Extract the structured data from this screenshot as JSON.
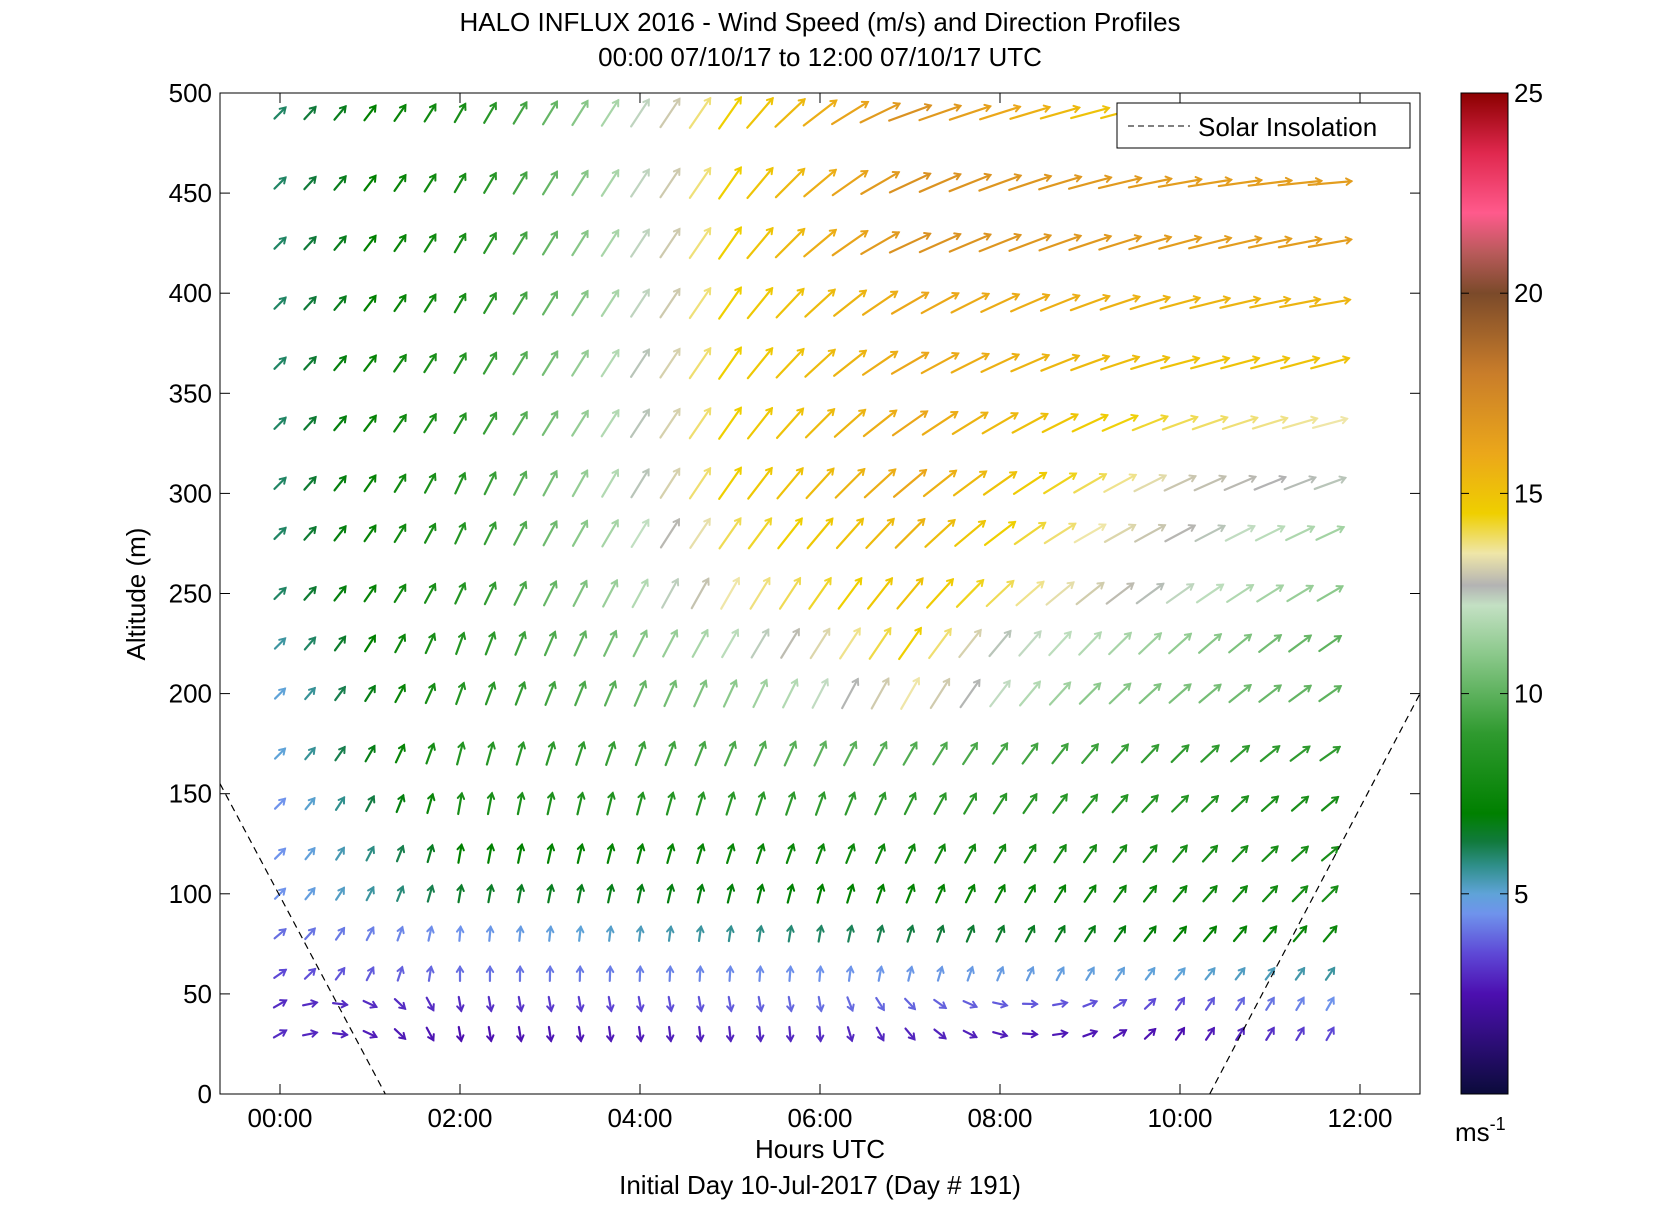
{
  "chart_data": {
    "type": "quiver",
    "title": "HALO INFLUX 2016 - Wind Speed (m/s) and Direction Profiles",
    "subtitle": "00:00 07/10/17 to 12:00 07/10/17  UTC",
    "xlabel": "Hours UTC",
    "xlabel_note": "Initial Day 10-Jul-2017 (Day # 191)",
    "ylabel": "Altitude (m)",
    "xlim": [
      -0.6667,
      12.6667
    ],
    "ylim": [
      0,
      500
    ],
    "x_ticks": [
      0,
      2,
      4,
      6,
      8,
      10,
      12
    ],
    "x_tick_labels": [
      "00:00",
      "02:00",
      "04:00",
      "06:00",
      "08:00",
      "10:00",
      "12:00"
    ],
    "y_ticks": [
      0,
      50,
      100,
      150,
      200,
      250,
      300,
      350,
      400,
      450,
      500
    ],
    "y_tick_labels": [
      "0",
      "50",
      "100",
      "150",
      "200",
      "250",
      "300",
      "350",
      "400",
      "450",
      "500"
    ],
    "times_hours": [
      0,
      0.333,
      0.667,
      1,
      1.333,
      1.667,
      2,
      2.333,
      2.667,
      3,
      3.333,
      3.667,
      4,
      4.333,
      4.667,
      5,
      5.333,
      5.667,
      6,
      6.333,
      6.667,
      7,
      7.333,
      7.667,
      8,
      8.333,
      8.667,
      9,
      9.333,
      9.667,
      10,
      10.333,
      10.667,
      11,
      11.333,
      11.667
    ],
    "altitudes_m": [
      30,
      45,
      60,
      80,
      100,
      120,
      145,
      170,
      200,
      225,
      250,
      280,
      305,
      335,
      365,
      395,
      425,
      455,
      490
    ],
    "legend": {
      "label": "Solar Insolation",
      "position": "top-right"
    },
    "solar_insolation": {
      "style": "dashed",
      "segments": [
        {
          "x": [
            -0.6667,
            1.17
          ],
          "y": [
            155,
            0
          ]
        },
        {
          "x": [
            10.33,
            12.6667
          ],
          "y": [
            0,
            200
          ]
        }
      ]
    },
    "colorbar": {
      "min": 0,
      "max": 25,
      "ticks": [
        5,
        10,
        15,
        20,
        25
      ],
      "tick_labels": [
        "5",
        "10",
        "15",
        "20",
        "25"
      ],
      "unit_label": "ms",
      "unit_exponent": "-1",
      "stops": [
        {
          "v": 0,
          "c": "#0b0b3b"
        },
        {
          "v": 2.5,
          "c": "#4c0fb0"
        },
        {
          "v": 3.5,
          "c": "#5e48d6"
        },
        {
          "v": 4.5,
          "c": "#6f93ec"
        },
        {
          "v": 5,
          "c": "#5fa3d8"
        },
        {
          "v": 5.7,
          "c": "#2f8f8a"
        },
        {
          "v": 6.3,
          "c": "#117a3d"
        },
        {
          "v": 7,
          "c": "#008000"
        },
        {
          "v": 9,
          "c": "#2f9a2f"
        },
        {
          "v": 11,
          "c": "#8cc98c"
        },
        {
          "v": 12.2,
          "c": "#c3e0c3"
        },
        {
          "v": 12.7,
          "c": "#b3b3b3"
        },
        {
          "v": 13.5,
          "c": "#efe6a8"
        },
        {
          "v": 14.5,
          "c": "#efcf00"
        },
        {
          "v": 16,
          "c": "#eba71a"
        },
        {
          "v": 18,
          "c": "#c97d2a"
        },
        {
          "v": 20,
          "c": "#7b4a2a"
        },
        {
          "v": 21,
          "c": "#b85a5a"
        },
        {
          "v": 22,
          "c": "#ff5a8c"
        },
        {
          "v": 23.5,
          "c": "#e0284e"
        },
        {
          "v": 25,
          "c": "#8b0000"
        }
      ]
    },
    "wind_field": {
      "description_units": "speed m/s, direction degrees toward (0 = north/up, 90 = east/right)",
      "speed_keyframes_by_altitude": [
        {
          "alt": 30,
          "t": [
            0,
            2,
            6,
            10,
            11.667
          ],
          "speed": [
            3,
            2.5,
            3,
            2.5,
            3.5
          ],
          "dir": [
            60,
            170,
            175,
            35,
            30
          ]
        },
        {
          "alt": 45,
          "t": [
            0,
            2,
            6,
            10,
            11.667
          ],
          "speed": [
            3,
            3,
            4,
            3.5,
            4.5
          ],
          "dir": [
            60,
            170,
            170,
            35,
            30
          ]
        },
        {
          "alt": 60,
          "t": [
            0,
            2,
            6,
            10,
            11.667
          ],
          "speed": [
            3.5,
            4,
            4.5,
            5,
            5.5
          ],
          "dir": [
            55,
            0,
            5,
            40,
            35
          ]
        },
        {
          "alt": 80,
          "t": [
            0,
            2,
            6,
            10,
            11.667
          ],
          "speed": [
            4,
            4.5,
            6,
            7,
            7.5
          ],
          "dir": [
            50,
            5,
            10,
            40,
            40
          ]
        },
        {
          "alt": 100,
          "t": [
            0,
            2,
            6,
            10,
            11.667
          ],
          "speed": [
            4.5,
            6.5,
            7,
            7.5,
            8
          ],
          "dir": [
            45,
            10,
            15,
            40,
            45
          ]
        },
        {
          "alt": 120,
          "t": [
            0,
            2,
            6,
            10,
            11.667
          ],
          "speed": [
            4.5,
            7,
            7.5,
            8,
            8
          ],
          "dir": [
            45,
            10,
            20,
            40,
            50
          ]
        },
        {
          "alt": 145,
          "t": [
            0,
            2,
            6,
            10,
            11.667
          ],
          "speed": [
            4.5,
            8,
            9,
            8.5,
            8
          ],
          "dir": [
            45,
            10,
            20,
            45,
            50
          ]
        },
        {
          "alt": 170,
          "t": [
            0,
            2,
            6,
            10,
            11.667
          ],
          "speed": [
            5,
            8.5,
            10,
            9,
            9
          ],
          "dir": [
            45,
            15,
            25,
            45,
            55
          ]
        },
        {
          "alt": 200,
          "t": [
            0,
            2,
            5,
            7,
            9,
            11.667
          ],
          "speed": [
            5,
            8.5,
            11,
            13.5,
            11,
            10
          ],
          "dir": [
            45,
            20,
            25,
            30,
            45,
            55
          ]
        },
        {
          "alt": 225,
          "t": [
            0,
            2,
            5,
            7,
            8,
            11.667
          ],
          "speed": [
            5.5,
            8.5,
            12,
            14.5,
            12.5,
            10
          ],
          "dir": [
            45,
            20,
            30,
            35,
            40,
            55
          ]
        },
        {
          "alt": 250,
          "t": [
            0,
            2,
            5,
            7,
            8.5,
            11.667
          ],
          "speed": [
            6,
            8.5,
            13.5,
            15,
            13.5,
            11
          ],
          "dir": [
            45,
            25,
            30,
            40,
            50,
            60
          ]
        },
        {
          "alt": 280,
          "t": [
            0,
            2,
            5,
            7,
            9,
            11.667
          ],
          "speed": [
            6,
            8.5,
            14,
            15.5,
            13.5,
            11.5
          ],
          "dir": [
            45,
            25,
            35,
            45,
            60,
            65
          ]
        },
        {
          "alt": 305,
          "t": [
            0,
            2,
            5,
            7,
            10,
            11.667
          ],
          "speed": [
            6,
            8.5,
            14.5,
            16,
            13,
            12.5
          ],
          "dir": [
            45,
            25,
            35,
            50,
            65,
            70
          ]
        },
        {
          "alt": 335,
          "t": [
            0,
            2,
            5,
            7,
            10,
            11.667
          ],
          "speed": [
            6,
            8.5,
            14.5,
            16,
            14,
            13.5
          ],
          "dir": [
            45,
            30,
            35,
            55,
            70,
            75
          ]
        },
        {
          "alt": 365,
          "t": [
            0,
            2,
            5,
            7,
            10,
            11.667
          ],
          "speed": [
            6,
            8.5,
            14.5,
            16,
            15,
            15
          ],
          "dir": [
            45,
            30,
            35,
            60,
            75,
            75
          ]
        },
        {
          "alt": 395,
          "t": [
            0,
            2,
            5,
            7,
            10,
            11.667
          ],
          "speed": [
            6,
            8,
            14.5,
            16,
            15.5,
            15.5
          ],
          "dir": [
            45,
            30,
            35,
            60,
            75,
            80
          ]
        },
        {
          "alt": 425,
          "t": [
            0,
            2,
            5,
            7,
            10,
            11.667
          ],
          "speed": [
            6,
            8,
            14.5,
            17,
            16.5,
            16.5
          ],
          "dir": [
            45,
            30,
            35,
            65,
            75,
            80
          ]
        },
        {
          "alt": 455,
          "t": [
            0,
            2,
            5,
            7,
            10,
            11.667
          ],
          "speed": [
            6,
            8,
            14.5,
            17,
            16.5,
            16.5
          ],
          "dir": [
            45,
            30,
            35,
            65,
            80,
            85
          ]
        },
        {
          "alt": 490,
          "t": [
            0,
            2,
            5,
            7,
            9,
            9.5
          ],
          "speed": [
            6,
            8,
            14.5,
            17,
            15,
            15
          ],
          "dir": [
            45,
            30,
            35,
            70,
            75,
            75
          ]
        }
      ],
      "max_time_for_490m": 9.5
    }
  }
}
